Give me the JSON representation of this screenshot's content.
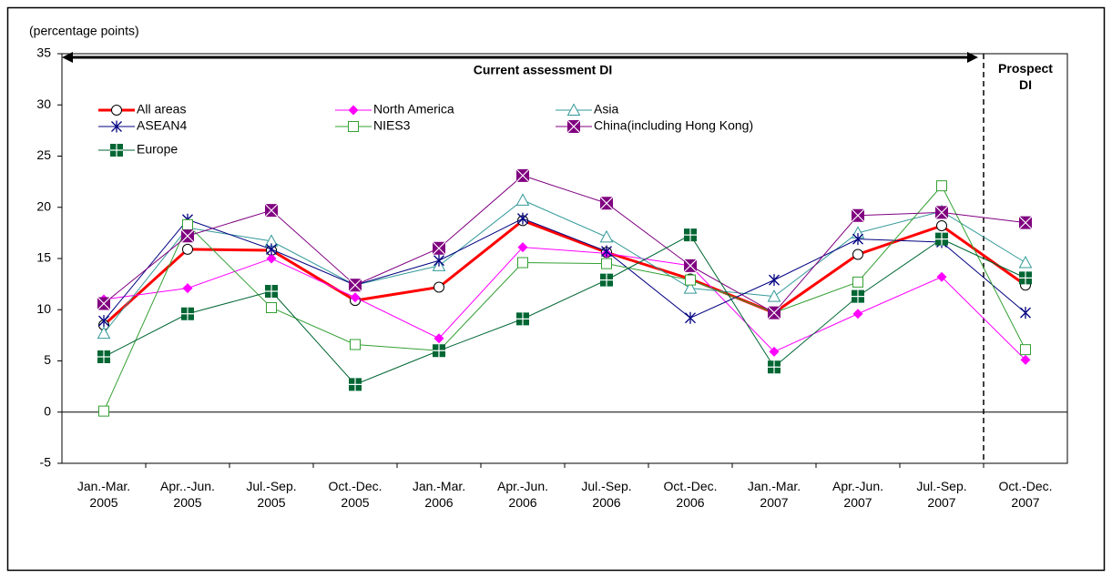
{
  "chart_data": {
    "type": "line",
    "y_axis_label": "(percentage points)",
    "annotations": [
      "Current assessment DI",
      "Prospect\nDI"
    ],
    "categories": [
      "Jan.-Mar.\n2005",
      "Apr..-Jun.\n2005",
      "Jul.-Sep.\n2005",
      "Oct.-Dec.\n2005",
      "Jan.-Mar.\n2006",
      "Apr.-Jun.\n2006",
      "Jul.-Sep.\n2006",
      "Oct.-Dec.\n2006",
      "Jan.-Mar.\n2007",
      "Apr.-Jun.\n2007",
      "Jul.-Sep.\n2007",
      "Oct.-Dec.\n2007"
    ],
    "ylim": [
      -5,
      35
    ],
    "yticks": [
      -5,
      0,
      5,
      10,
      15,
      20,
      25,
      30,
      35
    ],
    "grid": false,
    "series": [
      {
        "name": "All areas",
        "color": "#ff0000",
        "marker": "circle",
        "values": [
          8.5,
          15.9,
          15.8,
          10.9,
          12.2,
          18.7,
          15.6,
          13.0,
          9.7,
          15.4,
          18.2,
          12.4
        ]
      },
      {
        "name": "North America",
        "color": "#ff00ff",
        "marker": "diamond",
        "values": [
          11.0,
          12.1,
          15.0,
          11.2,
          7.2,
          16.1,
          15.5,
          14.3,
          5.9,
          9.6,
          13.2,
          5.1
        ]
      },
      {
        "name": "Asia",
        "color": "#339999",
        "marker": "triangle",
        "values": [
          7.7,
          18.0,
          16.7,
          12.4,
          14.3,
          20.7,
          17.1,
          12.1,
          11.3,
          17.5,
          19.6,
          14.6
        ]
      },
      {
        "name": "ASEAN4",
        "color": "#000080",
        "marker": "asterisk",
        "values": [
          8.9,
          18.8,
          15.9,
          12.4,
          14.8,
          18.9,
          15.7,
          9.2,
          12.9,
          16.9,
          16.6,
          9.7
        ]
      },
      {
        "name": "NIES3",
        "color": "#33a033",
        "marker": "square",
        "values": [
          0.1,
          18.3,
          10.2,
          6.6,
          6.0,
          14.6,
          14.5,
          12.9,
          9.7,
          12.7,
          22.1,
          6.1
        ]
      },
      {
        "name": "China(including Hong Kong)",
        "color": "#800080",
        "marker": "xsquare",
        "values": [
          10.6,
          17.2,
          19.7,
          12.4,
          16.0,
          23.1,
          20.4,
          14.3,
          9.7,
          19.2,
          19.5,
          18.5
        ]
      },
      {
        "name": "Europe",
        "color": "#006633",
        "marker": "plussquare",
        "values": [
          5.4,
          9.6,
          11.8,
          2.7,
          6.0,
          9.1,
          12.9,
          17.3,
          4.4,
          11.3,
          16.9,
          13.1
        ]
      }
    ]
  }
}
